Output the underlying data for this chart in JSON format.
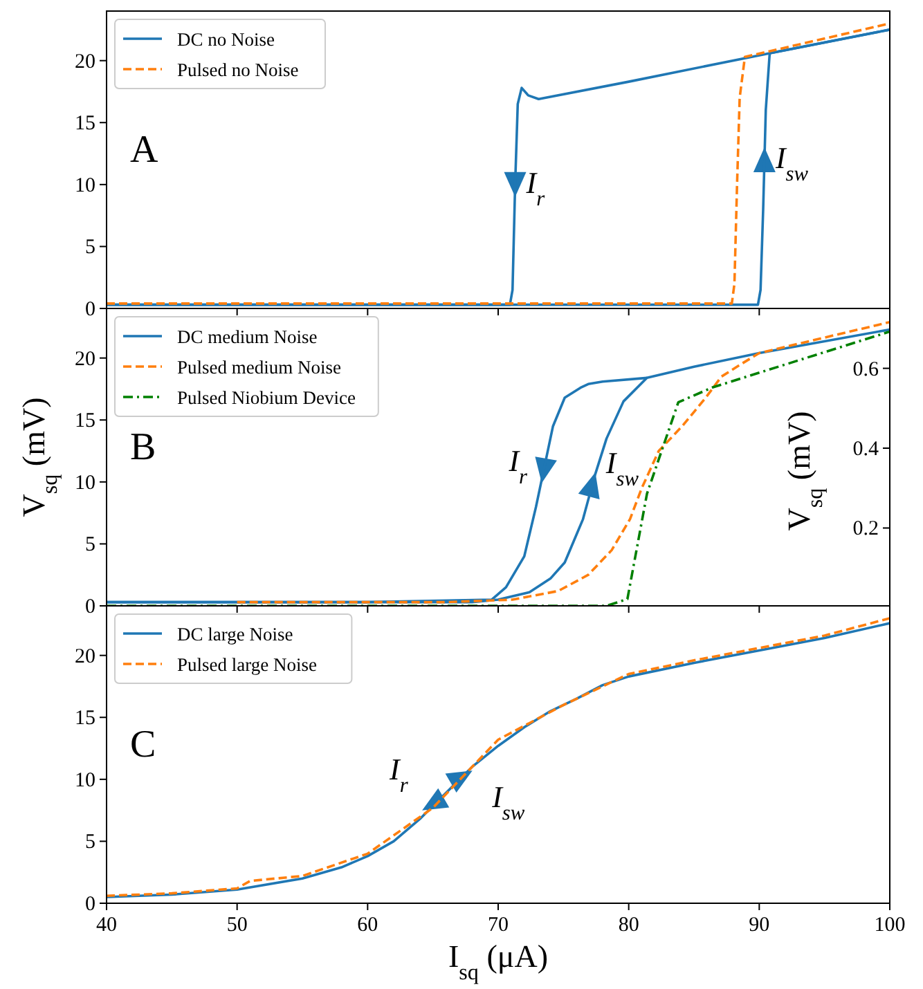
{
  "chart_data": [
    {
      "type": "line",
      "xlim": [
        40,
        100
      ],
      "ylim": [
        0,
        24
      ],
      "xticks": [
        40,
        50,
        60,
        70,
        80,
        90,
        100
      ],
      "yticks": [
        0,
        5,
        10,
        15,
        20
      ],
      "tick_labels": "y",
      "legend": "top left",
      "annotations": [
        "A",
        {
          "text": "I$_{r}$",
          "x": 71.3,
          "y": 10
        },
        {
          "text": "I$_{sw}$",
          "x": 90.4,
          "y": 12
        }
      ],
      "series": [
        {
          "name": "DC no Noise",
          "color": "#1f77b4",
          "line_style": "solid",
          "x": [
            40,
            60,
            89.9,
            90.1,
            90.3,
            90.5,
            90.8,
            100
          ],
          "values": [
            0.3,
            0.3,
            0.3,
            1.5,
            8,
            16,
            20.6,
            22.5
          ]
        },
        {
          "color": "#1f77b4",
          "line_style": "solid",
          "x": [
            40,
            60,
            70.9,
            71.1,
            71.3,
            71.5,
            71.8,
            72.3,
            73.1,
            80,
            90.8,
            100
          ],
          "values": [
            0.3,
            0.3,
            0.3,
            1.5,
            10,
            16.5,
            17.8,
            17.2,
            16.9,
            18.3,
            20.6,
            22.5
          ]
        },
        {
          "name": "Pulsed no Noise",
          "color": "#ff7f0e",
          "line_style": "dashed",
          "x": [
            40,
            60,
            87.9,
            88.1,
            88.3,
            88.5,
            88.9,
            100
          ],
          "values": [
            0.4,
            0.4,
            0.4,
            2,
            10,
            17,
            20.3,
            23.0
          ]
        }
      ]
    },
    {
      "type": "line",
      "xlim": [
        40,
        100
      ],
      "ylim": [
        0,
        24
      ],
      "xticks": [
        40,
        50,
        60,
        70,
        80,
        90,
        100
      ],
      "yticks": [
        0,
        5,
        10,
        15,
        20
      ],
      "y2lim": [
        0.005,
        0.75
      ],
      "y2ticks": [
        0.2,
        0.4,
        0.6
      ],
      "tick_labels": "y",
      "legend": "top left",
      "ylabel": "V$_{sq}$ (mV)",
      "y2label": "V$_{sq}$ (mV)",
      "annotations": [
        "B",
        {
          "text": "I$_{r}$",
          "x": 73.5,
          "y": 10.9
        },
        {
          "text": "I$_{sw}$",
          "x": 77.2,
          "y": 9.8
        }
      ],
      "series": [
        {
          "name": "DC medium Noise",
          "color": "#1f77b4",
          "line_style": "solid",
          "x": [
            40,
            60,
            68,
            70,
            72.4,
            74,
            75.1,
            76.5,
            77.4,
            78.3,
            79.6,
            81.4,
            85,
            90,
            100
          ],
          "values": [
            0.3,
            0.3,
            0.3,
            0.5,
            1.1,
            2.2,
            3.5,
            7,
            10.5,
            13.5,
            16.5,
            18.4,
            19.3,
            20.4,
            22.3
          ]
        },
        {
          "color": "#1f77b4",
          "line_style": "solid",
          "x": [
            40,
            60,
            69.5,
            70.6,
            72.0,
            72.9,
            73.6,
            74.2,
            75.1,
            76.3,
            76.9,
            78,
            81.4
          ],
          "values": [
            0.3,
            0.3,
            0.5,
            1.5,
            4,
            8,
            11.5,
            14.5,
            16.8,
            17.6,
            17.9,
            18.1,
            18.4
          ]
        },
        {
          "name": "Pulsed medium Noise",
          "color": "#ff7f0e",
          "line_style": "dashed",
          "x": [
            50,
            66,
            71.1,
            74.6,
            76.9,
            78.7,
            80.1,
            81.0,
            82.3,
            84.1,
            85.9,
            87.1,
            88.6,
            90,
            100
          ],
          "values": [
            0.3,
            0.3,
            0.5,
            1.2,
            2.5,
            4.5,
            7,
            9.5,
            12.5,
            14.5,
            16.8,
            18.5,
            19.5,
            20.4,
            22.9
          ]
        },
        {
          "name": "Pulsed Niobium Device",
          "color": "#008000",
          "line_style": "dashdot",
          "axis": "y2",
          "x": [
            40,
            78.3,
            79.9,
            81.4,
            83.8,
            86.4,
            100
          ],
          "values": [
            0.005,
            0.005,
            0.022,
            0.286,
            0.515,
            0.552,
            0.692
          ]
        }
      ]
    },
    {
      "type": "line",
      "xlim": [
        40,
        100
      ],
      "ylim": [
        0,
        24
      ],
      "xticks": [
        40,
        50,
        60,
        70,
        80,
        90,
        100
      ],
      "yticks": [
        0,
        5,
        10,
        15,
        20
      ],
      "legend": "top left",
      "xlabel": "I$_{sq}$ (μA)",
      "annotations": [
        "C",
        {
          "text": "I$_{r}$",
          "x": 65,
          "y": 8
        },
        {
          "text": "I$_{sw}$",
          "x": 67.2,
          "y": 10.2
        }
      ],
      "series": [
        {
          "name": "DC large Noise",
          "color": "#1f77b4",
          "line_style": "solid",
          "x": [
            40,
            45,
            50,
            55,
            58,
            60,
            62,
            64,
            66,
            68,
            70,
            72,
            74,
            76,
            78,
            80,
            85,
            90,
            95,
            100
          ],
          "values": [
            0.5,
            0.7,
            1.1,
            2.0,
            2.9,
            3.8,
            5.0,
            6.8,
            8.9,
            11,
            12.7,
            14.2,
            15.5,
            16.5,
            17.6,
            18.3,
            19.4,
            20.4,
            21.4,
            22.6
          ]
        },
        {
          "name": "Pulsed large Noise",
          "color": "#ff7f0e",
          "line_style": "dashed",
          "x": [
            40,
            45,
            50,
            51,
            55,
            60,
            65,
            70,
            75,
            80,
            85,
            90,
            95,
            100
          ],
          "values": [
            0.6,
            0.8,
            1.2,
            1.8,
            2.2,
            4.0,
            7.7,
            13.2,
            16.0,
            18.5,
            19.6,
            20.6,
            21.6,
            23.0
          ]
        }
      ]
    }
  ]
}
